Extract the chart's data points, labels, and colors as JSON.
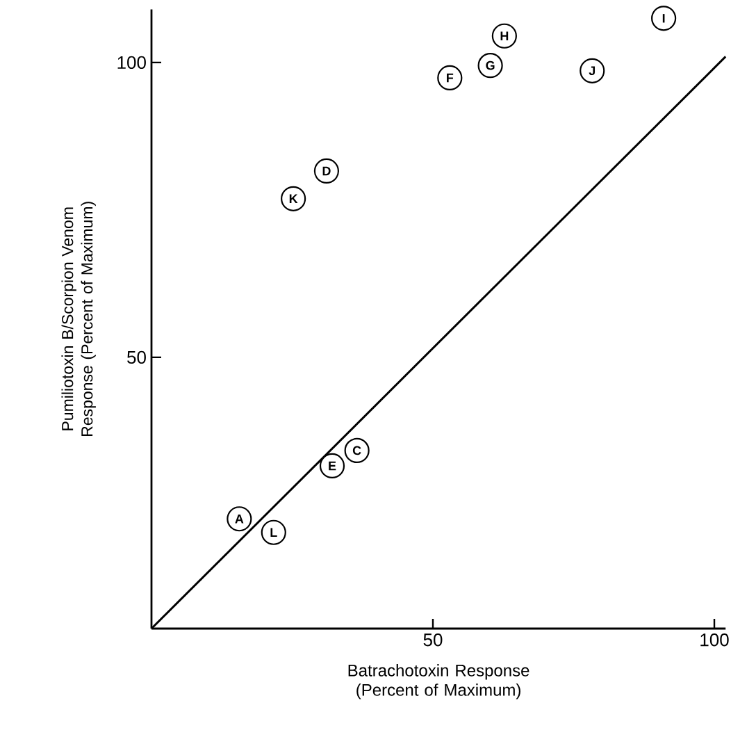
{
  "chart_data": {
    "type": "scatter",
    "xlabel": "Batrachotoxin Response (Percent of Maximum)",
    "ylabel": "Pumiliotoxin B/Scorpion Venom Response (Percent of Maximum)",
    "xlim": [
      0,
      102
    ],
    "ylim": [
      4,
      109
    ],
    "xticks": [
      50,
      100
    ],
    "yticks": [
      50,
      100
    ],
    "grid": false,
    "series": [
      {
        "type": "line",
        "color": "#000000",
        "marker": "none",
        "line_style": "solid",
        "x": [
          0,
          102
        ],
        "values": [
          4,
          101
        ]
      },
      {
        "color": "#000000",
        "marker": "circle",
        "x": [
          15.6,
          36.5,
          31.1,
          32.1,
          53,
          60.2,
          62.7,
          91,
          78.3,
          25.2,
          21.7
        ],
        "values": [
          22.6,
          34.2,
          81.6,
          31.6,
          97.4,
          99.5,
          104.5,
          107.5,
          98.6,
          76.9,
          20.3
        ]
      }
    ],
    "annotations": [
      {
        "text": "A",
        "x": 15.6,
        "y": 22.6
      },
      {
        "text": "C",
        "x": 36.5,
        "y": 34.2
      },
      {
        "text": "D",
        "x": 31.1,
        "y": 81.6
      },
      {
        "text": "E",
        "x": 32.1,
        "y": 31.6
      },
      {
        "text": "F",
        "x": 53,
        "y": 97.4
      },
      {
        "text": "G",
        "x": 60.2,
        "y": 99.5
      },
      {
        "text": "H",
        "x": 62.7,
        "y": 104.5
      },
      {
        "text": "I",
        "x": 91,
        "y": 107.5
      },
      {
        "text": "J",
        "x": 78.3,
        "y": 98.6
      },
      {
        "text": "K",
        "x": 25.2,
        "y": 76.9
      },
      {
        "text": "L",
        "x": 21.7,
        "y": 20.3
      }
    ]
  }
}
